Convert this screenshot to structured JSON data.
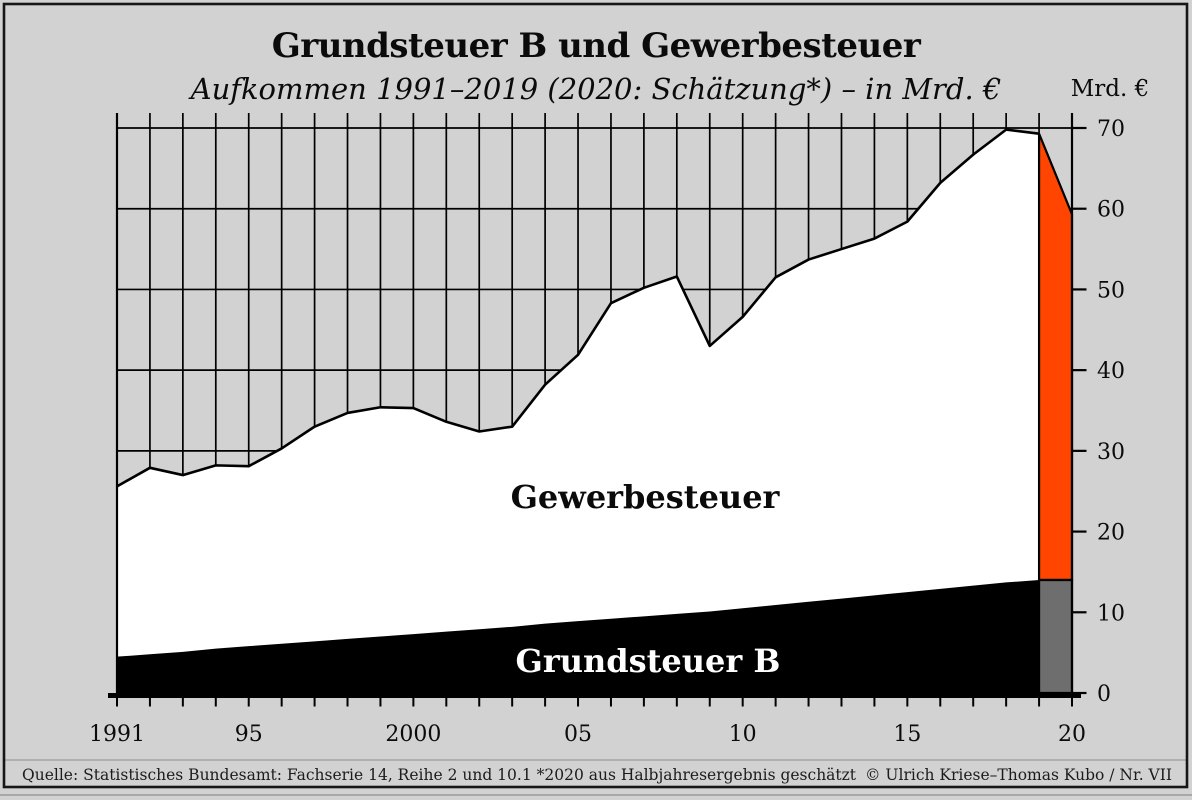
{
  "palette": {
    "background": "#d2d2d2",
    "ink": "#000000",
    "frame_border": "#161616",
    "estimate_orange": "#ff4500",
    "estimate_gray": "#6e6e6e"
  },
  "header": {
    "title": "Grundsteuer B und Gewerbesteuer",
    "subtitle": "Aufkommen 1991–2019 (2020: Schätzung*) – in Mrd. €",
    "unit_label": "Mrd. €"
  },
  "chart_data": {
    "type": "area",
    "stacked": true,
    "title": "Grundsteuer B und Gewerbesteuer",
    "subtitle": "Aufkommen 1991–2019 (2020: Schätzung*) – in Mrd. €",
    "ylabel": "Mrd. €",
    "ylim": [
      0,
      70
    ],
    "yticks": [
      0,
      10,
      20,
      30,
      40,
      50,
      60,
      70
    ],
    "xticks": [
      {
        "year": 1991,
        "label": "1991"
      },
      {
        "year": 1995,
        "label": "95"
      },
      {
        "year": 2000,
        "label": "2000"
      },
      {
        "year": 2005,
        "label": "05"
      },
      {
        "year": 2010,
        "label": "10"
      },
      {
        "year": 2015,
        "label": "15"
      },
      {
        "year": 2020,
        "label": "20"
      }
    ],
    "years": [
      1991,
      1992,
      1993,
      1994,
      1995,
      1996,
      1997,
      1998,
      1999,
      2000,
      2001,
      2002,
      2003,
      2004,
      2005,
      2006,
      2007,
      2008,
      2009,
      2010,
      2011,
      2012,
      2013,
      2014,
      2015,
      2016,
      2017,
      2018,
      2019,
      2020
    ],
    "estimate_year": 2020,
    "grid": {
      "vertical": "one line per year, above the data area only",
      "horizontal": "every 10 Mrd €, above the data area only"
    },
    "legend_position": "labels inside areas",
    "series": [
      {
        "name": "Grundsteuer B",
        "color": "#000000",
        "estimate_color": "#6e6e6e",
        "values": [
          4.5,
          4.8,
          5.1,
          5.5,
          5.8,
          6.1,
          6.4,
          6.7,
          7.0,
          7.3,
          7.6,
          7.9,
          8.2,
          8.6,
          8.9,
          9.2,
          9.5,
          9.8,
          10.1,
          10.5,
          10.9,
          11.3,
          11.7,
          12.1,
          12.5,
          12.9,
          13.3,
          13.7,
          14.0,
          14.0
        ]
      },
      {
        "name": "Gewerbesteuer",
        "color": "#ffffff",
        "estimate_color": "#ff4500",
        "values": [
          21.1,
          23.1,
          21.9,
          22.7,
          22.3,
          24.2,
          26.6,
          28.0,
          28.4,
          28.0,
          26.0,
          24.5,
          24.8,
          29.6,
          33.0,
          39.1,
          40.7,
          41.8,
          32.9,
          36.1,
          40.6,
          42.4,
          43.3,
          44.2,
          45.9,
          50.3,
          53.4,
          56.1,
          55.3,
          45.3
        ]
      }
    ]
  },
  "footer": {
    "source": "Quelle: Statistisches Bundesamt: Fachserie 14, Reihe 2 und 10.1 *2020 aus Halbjahresergebnis geschätzt",
    "credit": "© Ulrich Kriese–Thomas Kubo / Nr. VII"
  }
}
